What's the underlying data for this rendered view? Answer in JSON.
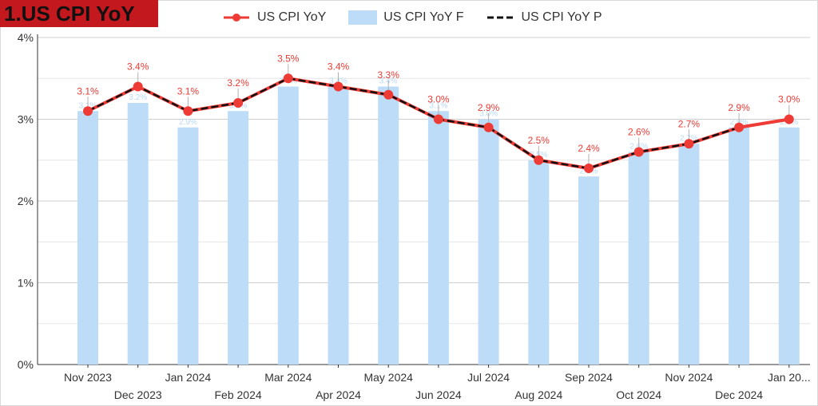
{
  "title": "1.US CPI YoY",
  "legend": [
    {
      "name": "US CPI YoY",
      "color": "#ee3b35",
      "icon": "line-dot-icon"
    },
    {
      "name": "US CPI YoY F",
      "color": "#bcdcf8",
      "icon": "bar-swatch-icon"
    },
    {
      "name": "US CPI YoY P",
      "color": "#111111",
      "icon": "dashed-line-icon"
    }
  ],
  "chart_data": {
    "type": "bar",
    "title": "1.US CPI YoY",
    "xlabel": "",
    "ylabel": "",
    "ylim": [
      0,
      4
    ],
    "yticks": [
      "0%",
      "1%",
      "2%",
      "3%",
      "4%"
    ],
    "grid": true,
    "legend_position": "top",
    "categories": [
      "Nov 2023",
      "Dec 2023",
      "Jan 2024",
      "Feb 2024",
      "Mar 2024",
      "Apr 2024",
      "May 2024",
      "Jun 2024",
      "Jul 2024",
      "Aug 2024",
      "Sep 2024",
      "Oct 2024",
      "Nov 2024",
      "Dec 2024",
      "Jan 20..."
    ],
    "series": [
      {
        "name": "US CPI YoY",
        "type": "line",
        "color": "#ee3b35",
        "values": [
          3.1,
          3.4,
          3.1,
          3.2,
          3.5,
          3.4,
          3.3,
          3.0,
          2.9,
          2.5,
          2.4,
          2.6,
          2.7,
          2.9,
          3.0
        ],
        "labels": [
          "3.1%",
          "3.4%",
          "3.1%",
          "3.2%",
          "3.5%",
          "3.4%",
          "3.3%",
          "3.0%",
          "2.9%",
          "2.5%",
          "2.4%",
          "2.6%",
          "2.7%",
          "2.9%",
          "3.0%"
        ]
      },
      {
        "name": "US CPI YoY F",
        "type": "bar",
        "color": "#bcdcf8",
        "values": [
          3.1,
          3.2,
          2.9,
          3.1,
          3.4,
          3.4,
          3.4,
          3.1,
          3.0,
          2.5,
          2.3,
          2.6,
          2.7,
          2.9,
          2.9
        ],
        "labels": [
          "3.1%",
          "3.2%",
          "2.9%",
          "3.1%",
          "3.4%",
          "3.4%",
          "3.4%",
          "3.1%",
          "3.0%",
          "2.5%",
          "2.3%",
          "2.6%",
          "2.7%",
          "2.9%",
          "2.9%"
        ]
      },
      {
        "name": "US CPI YoY P",
        "type": "line",
        "style": "dashed",
        "color": "#111111",
        "values": [
          3.1,
          3.4,
          3.1,
          3.2,
          3.5,
          3.4,
          3.3,
          3.0,
          2.9,
          2.5,
          2.4,
          2.6,
          2.7,
          2.9,
          null
        ]
      }
    ]
  }
}
